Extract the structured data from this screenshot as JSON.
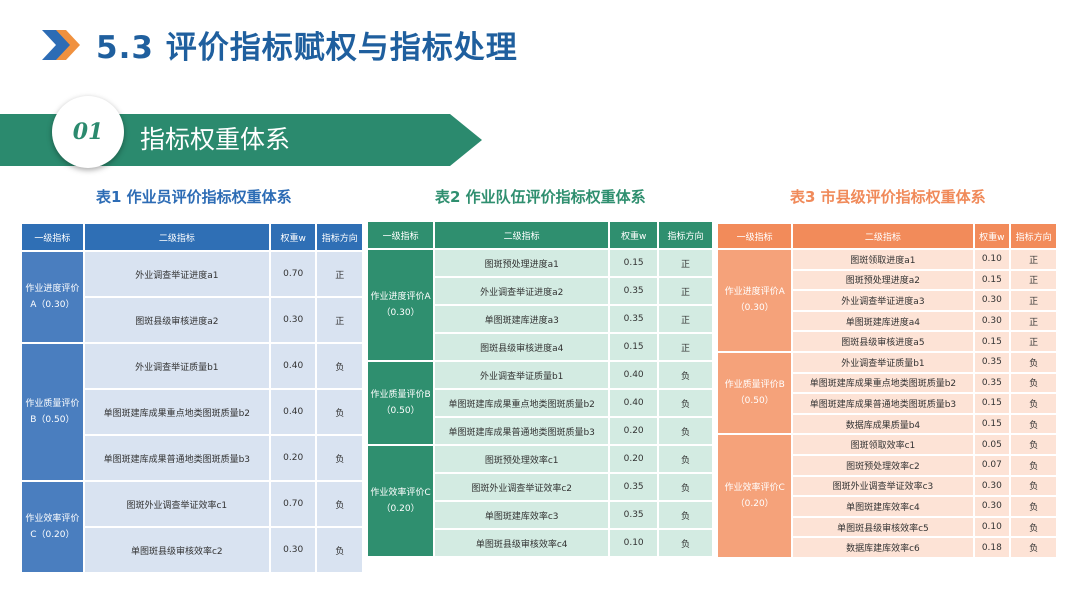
{
  "header": {
    "title": "5.3 评价指标赋权与指标处理",
    "section_number": "01",
    "section_title": "指标权重体系"
  },
  "colors": {
    "title": "#1f5f9e",
    "banner": "#2b8a6e",
    "table1": "#2f6fb5",
    "table2": "#2f8f6f",
    "table3": "#f28b5a"
  },
  "table1": {
    "caption": "表1 作业员评价指标权重体系",
    "headers": [
      "一级指标",
      "二级指标",
      "权重w",
      "指标方向"
    ],
    "groups": [
      {
        "name": "作业进度评价A（0.30）",
        "rows": [
          {
            "item": "外业调查举证进度a1",
            "w": "0.70",
            "dir": "正"
          },
          {
            "item": "图斑县级审核进度a2",
            "w": "0.30",
            "dir": "正"
          }
        ]
      },
      {
        "name": "作业质量评价B（0.50）",
        "rows": [
          {
            "item": "外业调查举证质量b1",
            "w": "0.40",
            "dir": "负"
          },
          {
            "item": "单图斑建库成果重点地类图斑质量b2",
            "w": "0.40",
            "dir": "负"
          },
          {
            "item": "单图斑建库成果普通地类图斑质量b3",
            "w": "0.20",
            "dir": "负"
          }
        ]
      },
      {
        "name": "作业效率评价C（0.20）",
        "rows": [
          {
            "item": "图斑外业调查举证效率c1",
            "w": "0.70",
            "dir": "负"
          },
          {
            "item": "单图斑县级审核效率c2",
            "w": "0.30",
            "dir": "负"
          }
        ]
      }
    ]
  },
  "table2": {
    "caption": "表2 作业队伍评价指标权重体系",
    "headers": [
      "一级指标",
      "二级指标",
      "权重w",
      "指标方向"
    ],
    "groups": [
      {
        "name": "作业进度评价A（0.30）",
        "rows": [
          {
            "item": "图斑预处理进度a1",
            "w": "0.15",
            "dir": "正"
          },
          {
            "item": "外业调查举证进度a2",
            "w": "0.35",
            "dir": "正"
          },
          {
            "item": "单图斑建库进度a3",
            "w": "0.35",
            "dir": "正"
          },
          {
            "item": "图斑县级审核进度a4",
            "w": "0.15",
            "dir": "正"
          }
        ]
      },
      {
        "name": "作业质量评价B（0.50）",
        "rows": [
          {
            "item": "外业调查举证质量b1",
            "w": "0.40",
            "dir": "负"
          },
          {
            "item": "单图斑建库成果重点地类图斑质量b2",
            "w": "0.40",
            "dir": "负"
          },
          {
            "item": "单图斑建库成果普通地类图斑质量b3",
            "w": "0.20",
            "dir": "负"
          }
        ]
      },
      {
        "name": "作业效率评价C（0.20）",
        "rows": [
          {
            "item": "图斑预处理效率c1",
            "w": "0.20",
            "dir": "负"
          },
          {
            "item": "图斑外业调查举证效率c2",
            "w": "0.35",
            "dir": "负"
          },
          {
            "item": "单图斑建库效率c3",
            "w": "0.35",
            "dir": "负"
          },
          {
            "item": "单图斑县级审核效率c4",
            "w": "0.10",
            "dir": "负"
          }
        ]
      }
    ]
  },
  "table3": {
    "caption": "表3 市县级评价指标权重体系",
    "headers": [
      "一级指标",
      "二级指标",
      "权重w",
      "指标方向"
    ],
    "groups": [
      {
        "name": "作业进度评价A（0.30）",
        "rows": [
          {
            "item": "图斑领取进度a1",
            "w": "0.10",
            "dir": "正"
          },
          {
            "item": "图斑预处理进度a2",
            "w": "0.15",
            "dir": "正"
          },
          {
            "item": "外业调查举证进度a3",
            "w": "0.30",
            "dir": "正"
          },
          {
            "item": "单图斑建库进度a4",
            "w": "0.30",
            "dir": "正"
          },
          {
            "item": "图斑县级审核进度a5",
            "w": "0.15",
            "dir": "正"
          }
        ]
      },
      {
        "name": "作业质量评价B（0.50）",
        "rows": [
          {
            "item": "外业调查举证质量b1",
            "w": "0.35",
            "dir": "负"
          },
          {
            "item": "单图斑建库成果重点地类图斑质量b2",
            "w": "0.35",
            "dir": "负"
          },
          {
            "item": "单图斑建库成果普通地类图斑质量b3",
            "w": "0.15",
            "dir": "负"
          },
          {
            "item": "数据库成果质量b4",
            "w": "0.15",
            "dir": "负"
          }
        ]
      },
      {
        "name": "作业效率评价C（0.20）",
        "rows": [
          {
            "item": "图斑领取效率c1",
            "w": "0.05",
            "dir": "负"
          },
          {
            "item": "图斑预处理效率c2",
            "w": "0.07",
            "dir": "负"
          },
          {
            "item": "图斑外业调查举证效率c3",
            "w": "0.30",
            "dir": "负"
          },
          {
            "item": "单图斑建库效率c4",
            "w": "0.30",
            "dir": "负"
          },
          {
            "item": "单图斑县级审核效率c5",
            "w": "0.10",
            "dir": "负"
          },
          {
            "item": "数据库建库效率c6",
            "w": "0.18",
            "dir": "负"
          }
        ]
      }
    ]
  }
}
